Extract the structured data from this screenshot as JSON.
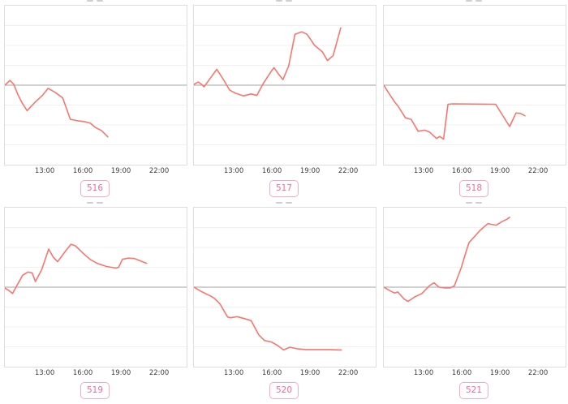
{
  "colors": {
    "line": "#f8766d",
    "baseline": "#a3a3a3",
    "grid": "#f0f0f0",
    "panel_border": "#dedede",
    "tick_text": "#3d3d3d",
    "badge_border": "#f9a8c3",
    "badge_text": "#ee6a9b",
    "background": "#ffffff"
  },
  "chart_data": {
    "type": "line",
    "layout": "2x3 small multiples, shared time x-axis, no y-axis tick labels visible",
    "note": "Each panel shows one salmon time-series against a gray horizontal baseline at mid-panel. Values are normalized: 0 = gray baseline, +/-1 = top/bottom edge of panel.",
    "x_tick_labels": [
      "13:00",
      "16:00",
      "19:00",
      "22:00"
    ],
    "x_tick_hours": [
      13,
      16,
      19,
      22
    ],
    "x_domain_hours": [
      9.8,
      24.1
    ],
    "grid": "horizontal only, light gray",
    "legend": "none",
    "panels": [
      {
        "label": "516",
        "points": [
          [
            9.8,
            0.0
          ],
          [
            10.2,
            0.06
          ],
          [
            10.5,
            0.01
          ],
          [
            10.8,
            -0.11
          ],
          [
            11.15,
            -0.22
          ],
          [
            11.55,
            -0.32
          ],
          [
            12.2,
            -0.21
          ],
          [
            12.75,
            -0.13
          ],
          [
            13.2,
            -0.04
          ],
          [
            13.75,
            -0.09
          ],
          [
            14.35,
            -0.16
          ],
          [
            14.95,
            -0.43
          ],
          [
            15.6,
            -0.45
          ],
          [
            16.1,
            -0.46
          ],
          [
            16.55,
            -0.48
          ],
          [
            16.9,
            -0.53
          ],
          [
            17.4,
            -0.57
          ],
          [
            17.9,
            -0.65
          ]
        ]
      },
      {
        "label": "517",
        "points": [
          [
            9.8,
            0.01
          ],
          [
            10.15,
            0.04
          ],
          [
            10.4,
            0.01
          ],
          [
            10.6,
            -0.02
          ],
          [
            11.6,
            0.2
          ],
          [
            12.2,
            0.05
          ],
          [
            12.6,
            -0.06
          ],
          [
            13.05,
            -0.1
          ],
          [
            13.7,
            -0.135
          ],
          [
            14.3,
            -0.11
          ],
          [
            14.75,
            -0.13
          ],
          [
            15.25,
            0.02
          ],
          [
            15.9,
            0.18
          ],
          [
            16.1,
            0.22
          ],
          [
            16.5,
            0.13
          ],
          [
            16.8,
            0.07
          ],
          [
            17.25,
            0.24
          ],
          [
            17.75,
            0.64
          ],
          [
            18.3,
            0.67
          ],
          [
            18.7,
            0.64
          ],
          [
            19.3,
            0.5
          ],
          [
            19.9,
            0.42
          ],
          [
            20.3,
            0.31
          ],
          [
            20.75,
            0.37
          ],
          [
            21.35,
            0.72
          ]
        ]
      },
      {
        "label": "518",
        "points": [
          [
            9.8,
            0.0
          ],
          [
            10.15,
            -0.09
          ],
          [
            10.65,
            -0.21
          ],
          [
            10.95,
            -0.27
          ],
          [
            11.5,
            -0.41
          ],
          [
            11.95,
            -0.43
          ],
          [
            12.5,
            -0.58
          ],
          [
            13.0,
            -0.565
          ],
          [
            13.4,
            -0.59
          ],
          [
            13.95,
            -0.67
          ],
          [
            14.2,
            -0.645
          ],
          [
            14.5,
            -0.68
          ],
          [
            14.85,
            -0.24
          ],
          [
            15.2,
            -0.235
          ],
          [
            18.6,
            -0.24
          ],
          [
            19.7,
            -0.52
          ],
          [
            20.2,
            -0.35
          ],
          [
            20.55,
            -0.355
          ],
          [
            20.9,
            -0.385
          ]
        ]
      },
      {
        "label": "519",
        "points": [
          [
            9.8,
            -0.01
          ],
          [
            10.1,
            -0.04
          ],
          [
            10.4,
            -0.08
          ],
          [
            11.2,
            0.15
          ],
          [
            11.6,
            0.19
          ],
          [
            11.95,
            0.18
          ],
          [
            12.2,
            0.07
          ],
          [
            12.7,
            0.22
          ],
          [
            13.25,
            0.48
          ],
          [
            13.6,
            0.38
          ],
          [
            13.95,
            0.32
          ],
          [
            14.6,
            0.46
          ],
          [
            15.0,
            0.54
          ],
          [
            15.35,
            0.52
          ],
          [
            16.0,
            0.42
          ],
          [
            16.5,
            0.35
          ],
          [
            17.05,
            0.3
          ],
          [
            17.8,
            0.26
          ],
          [
            18.55,
            0.24
          ],
          [
            18.75,
            0.25
          ],
          [
            19.05,
            0.35
          ],
          [
            19.5,
            0.365
          ],
          [
            20.0,
            0.36
          ],
          [
            20.95,
            0.3
          ]
        ]
      },
      {
        "label": "520",
        "points": [
          [
            9.8,
            0.0
          ],
          [
            10.45,
            -0.06
          ],
          [
            11.1,
            -0.11
          ],
          [
            11.4,
            -0.14
          ],
          [
            11.85,
            -0.21
          ],
          [
            12.45,
            -0.375
          ],
          [
            12.7,
            -0.385
          ],
          [
            13.2,
            -0.37
          ],
          [
            13.75,
            -0.395
          ],
          [
            14.3,
            -0.42
          ],
          [
            14.9,
            -0.6
          ],
          [
            15.35,
            -0.67
          ],
          [
            15.9,
            -0.69
          ],
          [
            16.4,
            -0.735
          ],
          [
            16.85,
            -0.79
          ],
          [
            17.35,
            -0.755
          ],
          [
            17.9,
            -0.775
          ],
          [
            18.65,
            -0.785
          ],
          [
            19.5,
            -0.785
          ],
          [
            20.5,
            -0.785
          ],
          [
            21.4,
            -0.79
          ]
        ]
      },
      {
        "label": "521",
        "points": [
          [
            9.8,
            0.0
          ],
          [
            10.35,
            -0.05
          ],
          [
            10.65,
            -0.075
          ],
          [
            10.9,
            -0.06
          ],
          [
            11.4,
            -0.15
          ],
          [
            11.7,
            -0.18
          ],
          [
            12.25,
            -0.12
          ],
          [
            12.8,
            -0.08
          ],
          [
            13.4,
            0.02
          ],
          [
            13.75,
            0.055
          ],
          [
            14.15,
            0.0
          ],
          [
            14.6,
            -0.01
          ],
          [
            15.0,
            -0.01
          ],
          [
            15.35,
            0.015
          ],
          [
            15.9,
            0.25
          ],
          [
            16.3,
            0.46
          ],
          [
            16.5,
            0.56
          ],
          [
            16.85,
            0.62
          ],
          [
            17.35,
            0.71
          ],
          [
            17.7,
            0.76
          ],
          [
            18.0,
            0.8
          ],
          [
            18.3,
            0.79
          ],
          [
            18.65,
            0.78
          ],
          [
            19.15,
            0.83
          ],
          [
            19.5,
            0.855
          ],
          [
            19.7,
            0.88
          ]
        ]
      }
    ]
  }
}
